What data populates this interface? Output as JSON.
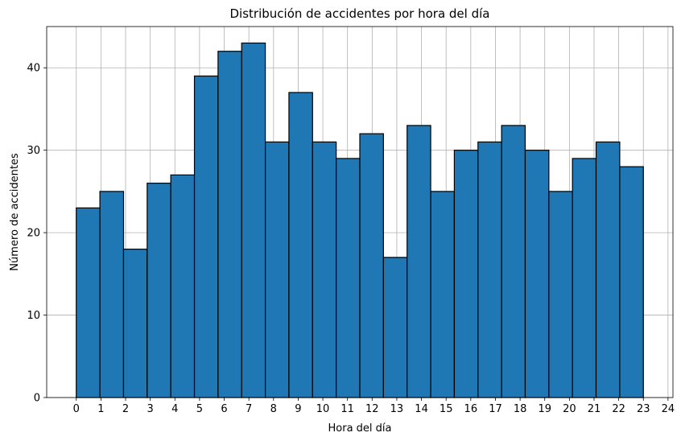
{
  "chart_data": {
    "type": "bar",
    "title": "Distribución de accidentes por hora del día",
    "xlabel": "Hora del día",
    "ylabel": "Número de accidentes",
    "x_ticks": [
      "0",
      "1",
      "2",
      "3",
      "4",
      "5",
      "6",
      "7",
      "8",
      "9",
      "10",
      "11",
      "12",
      "13",
      "14",
      "15",
      "16",
      "17",
      "18",
      "19",
      "20",
      "21",
      "22",
      "23",
      "24"
    ],
    "y_ticks": [
      "0",
      "10",
      "20",
      "30",
      "40"
    ],
    "bins": [
      {
        "start": 0,
        "end": 0.958
      },
      {
        "start": 0.958,
        "end": 1.917
      },
      {
        "start": 1.917,
        "end": 2.875
      },
      {
        "start": 2.875,
        "end": 3.833
      },
      {
        "start": 3.833,
        "end": 4.792
      },
      {
        "start": 4.792,
        "end": 5.75
      },
      {
        "start": 5.75,
        "end": 6.708
      },
      {
        "start": 6.708,
        "end": 7.667
      },
      {
        "start": 7.667,
        "end": 8.625
      },
      {
        "start": 8.625,
        "end": 9.583
      },
      {
        "start": 9.583,
        "end": 10.542
      },
      {
        "start": 10.542,
        "end": 11.5
      },
      {
        "start": 11.5,
        "end": 12.458
      },
      {
        "start": 12.458,
        "end": 13.417
      },
      {
        "start": 13.417,
        "end": 14.375
      },
      {
        "start": 14.375,
        "end": 15.333
      },
      {
        "start": 15.333,
        "end": 16.292
      },
      {
        "start": 16.292,
        "end": 17.25
      },
      {
        "start": 17.25,
        "end": 18.208
      },
      {
        "start": 18.208,
        "end": 19.167
      },
      {
        "start": 19.167,
        "end": 20.125
      },
      {
        "start": 20.125,
        "end": 21.083
      },
      {
        "start": 21.083,
        "end": 22.042
      },
      {
        "start": 22.042,
        "end": 23.0
      }
    ],
    "values": [
      23,
      25,
      18,
      26,
      27,
      39,
      42,
      43,
      31,
      37,
      31,
      29,
      32,
      17,
      33,
      25,
      30,
      31,
      33,
      30,
      25,
      29,
      31,
      28
    ],
    "xlim": [
      -1.2,
      24.2
    ],
    "ylim": [
      0,
      45
    ],
    "grid": true,
    "bar_color": "#1f77b4",
    "edge_color": "#000000",
    "grid_color": "#b0b0b0"
  }
}
